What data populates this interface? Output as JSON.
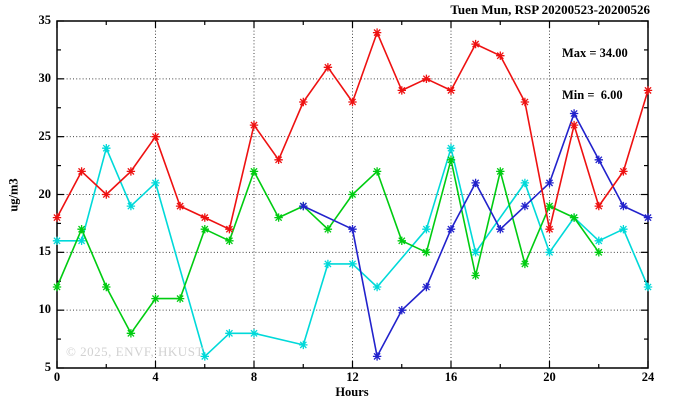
{
  "title": "Tuen Mun, RSP 20200523-20200526",
  "watermark": "© 2025, ENVF, HKUST",
  "annotations": {
    "max_label": "Max = 34.00",
    "min_label": "Min =  6.00"
  },
  "chart_data": {
    "type": "line",
    "title": "Tuen Mun, RSP 20200523-20200526",
    "xlabel": "Hours",
    "ylabel": "ug/m3",
    "xlim": [
      0,
      24
    ],
    "ylim": [
      5,
      35
    ],
    "xticks": [
      0,
      4,
      8,
      12,
      16,
      20,
      24
    ],
    "xticks_minor": [
      2,
      6,
      10,
      14,
      18,
      22
    ],
    "yticks": [
      5,
      10,
      15,
      20,
      25,
      30,
      35
    ],
    "yticks_minor": [
      7.5,
      12.5,
      17.5,
      22.5,
      27.5,
      32.5
    ],
    "grid": {
      "on": true,
      "style": "dotted",
      "x_at": [
        4,
        8,
        12,
        16,
        20
      ],
      "y_at": [
        10,
        15,
        20,
        25,
        30
      ]
    },
    "max_value": 34.0,
    "min_value": 6.0,
    "series": [
      {
        "name": "cyan",
        "color": "#00d9d9",
        "points": [
          [
            0,
            16
          ],
          [
            1,
            16
          ],
          [
            2,
            24
          ],
          [
            3,
            19
          ],
          [
            4,
            21
          ],
          [
            6,
            6
          ],
          [
            7,
            8
          ],
          [
            8,
            8
          ],
          [
            10,
            7
          ],
          [
            11,
            14
          ],
          [
            12,
            14
          ],
          [
            13,
            12
          ],
          [
            15,
            17
          ],
          [
            16,
            24
          ],
          [
            17,
            15
          ],
          [
            19,
            21
          ],
          [
            20,
            15
          ],
          [
            21,
            18
          ],
          [
            22,
            16
          ],
          [
            23,
            17
          ],
          [
            24,
            12
          ]
        ]
      },
      {
        "name": "green",
        "color": "#00cc11",
        "points": [
          [
            0,
            12
          ],
          [
            1,
            17
          ],
          [
            2,
            12
          ],
          [
            3,
            8
          ],
          [
            4,
            11
          ],
          [
            5,
            11
          ],
          [
            6,
            17
          ],
          [
            7,
            16
          ],
          [
            8,
            22
          ],
          [
            9,
            18
          ],
          [
            10,
            19
          ],
          [
            11,
            17
          ],
          [
            12,
            20
          ],
          [
            13,
            22
          ],
          [
            14,
            16
          ],
          [
            15,
            15
          ],
          [
            16,
            23
          ],
          [
            17,
            13
          ],
          [
            18,
            22
          ],
          [
            19,
            14
          ],
          [
            20,
            19
          ],
          [
            21,
            18
          ],
          [
            22,
            15
          ]
        ]
      },
      {
        "name": "blue",
        "color": "#2222cc",
        "points": [
          [
            10,
            19
          ],
          [
            12,
            17
          ],
          [
            13,
            6
          ],
          [
            14,
            10
          ],
          [
            15,
            12
          ],
          [
            16,
            17
          ],
          [
            17,
            21
          ],
          [
            18,
            17
          ],
          [
            19,
            19
          ],
          [
            20,
            21
          ],
          [
            21,
            27
          ],
          [
            22,
            23
          ],
          [
            23,
            19
          ],
          [
            24,
            18
          ]
        ]
      },
      {
        "name": "red",
        "color": "#ee1111",
        "points": [
          [
            0,
            18
          ],
          [
            1,
            22
          ],
          [
            2,
            20
          ],
          [
            3,
            22
          ],
          [
            4,
            25
          ],
          [
            5,
            19
          ],
          [
            6,
            18
          ],
          [
            7,
            17
          ],
          [
            8,
            26
          ],
          [
            9,
            23
          ],
          [
            10,
            28
          ],
          [
            11,
            31
          ],
          [
            12,
            28
          ],
          [
            13,
            34
          ],
          [
            14,
            29
          ],
          [
            15,
            30
          ],
          [
            16,
            29
          ],
          [
            17,
            33
          ],
          [
            18,
            32
          ],
          [
            19,
            28
          ],
          [
            20,
            17
          ],
          [
            21,
            26
          ],
          [
            22,
            19
          ],
          [
            23,
            22
          ],
          [
            24,
            29
          ]
        ]
      }
    ]
  }
}
